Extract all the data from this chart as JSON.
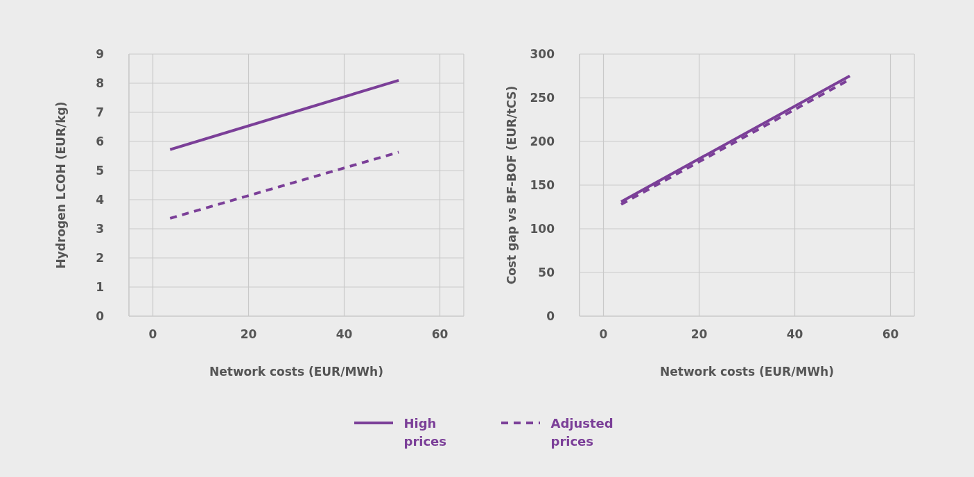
{
  "chart_data": [
    {
      "type": "line",
      "xlabel": "Network costs (EUR/MWh)",
      "ylabel": "Hydrogen LCOH (EUR/kg)",
      "xlim": [
        -5,
        65
      ],
      "xticks": [
        0,
        20,
        40,
        60
      ],
      "ylim": [
        0,
        9
      ],
      "yticks": [
        0,
        1,
        2,
        3,
        4,
        5,
        6,
        7,
        8,
        9
      ],
      "grid": true,
      "legend": "bottom",
      "marker": "none",
      "x": [
        3.6,
        51.4
      ],
      "series": [
        {
          "name": "High prices",
          "color": "#7b3f98",
          "line_style": "solid",
          "values": [
            5.72,
            8.1
          ]
        },
        {
          "name": "Adjusted prices",
          "color": "#7b3f98",
          "line_style": "dashed",
          "values": [
            3.36,
            5.63
          ]
        }
      ]
    },
    {
      "type": "line",
      "xlabel": "Network costs (EUR/MWh)",
      "ylabel": "Cost gap vs BF-BOF (EUR/tCS)",
      "xlim": [
        -5,
        65
      ],
      "xticks": [
        0,
        20,
        40,
        60
      ],
      "ylim": [
        0,
        300
      ],
      "yticks": [
        0,
        50,
        100,
        150,
        200,
        250,
        300
      ],
      "grid": true,
      "legend": "bottom",
      "marker": "none",
      "x": [
        3.7,
        51.5
      ],
      "series": [
        {
          "name": "High prices",
          "color": "#7b3f98",
          "line_style": "solid",
          "values": [
            131,
            275
          ]
        },
        {
          "name": "Adjusted prices",
          "color": "#7b3f98",
          "line_style": "dashed",
          "values": [
            128,
            271
          ]
        }
      ]
    }
  ]
}
